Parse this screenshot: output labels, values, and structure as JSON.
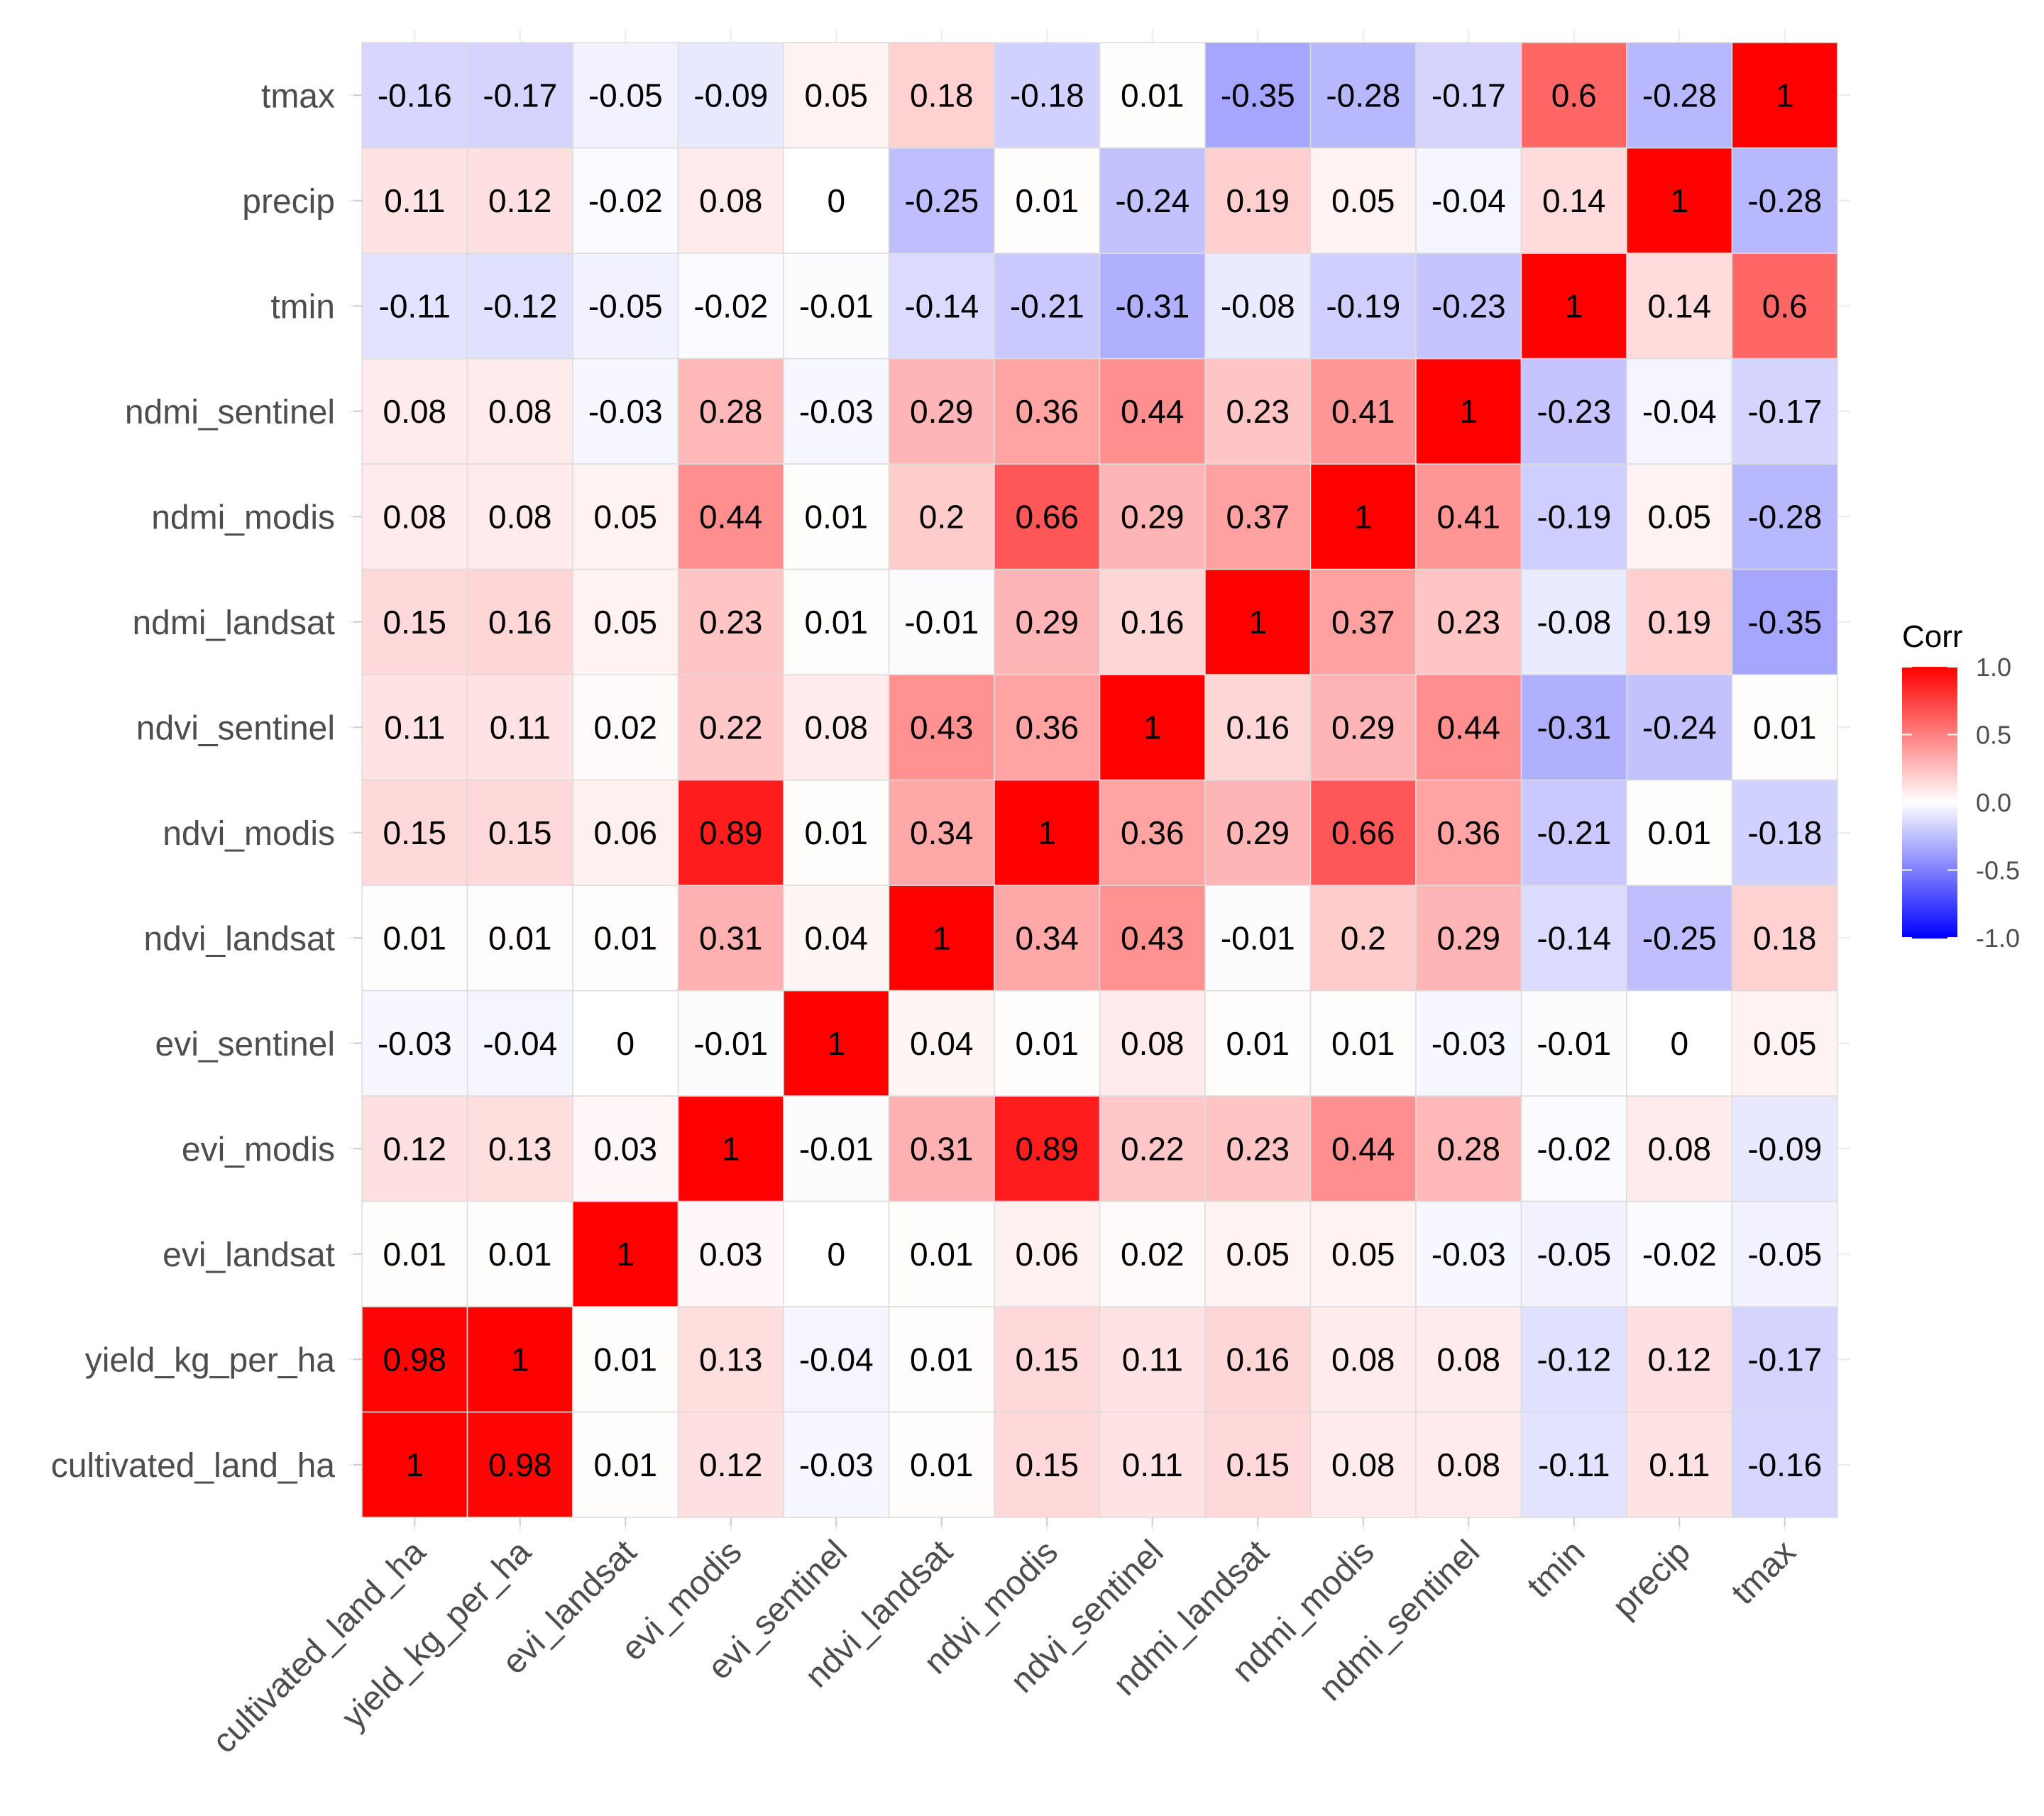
{
  "chart_data": {
    "type": "heatmap",
    "variables": [
      "cultivated_land_ha",
      "yield_kg_per_ha",
      "evi_landsat",
      "evi_modis",
      "evi_sentinel",
      "ndvi_landsat",
      "ndvi_modis",
      "ndvi_sentinel",
      "ndmi_landsat",
      "ndmi_modis",
      "ndmi_sentinel",
      "tmin",
      "precip",
      "tmax"
    ],
    "x_categories": [
      "cultivated_land_ha",
      "yield_kg_per_ha",
      "evi_landsat",
      "evi_modis",
      "evi_sentinel",
      "ndvi_landsat",
      "ndvi_modis",
      "ndvi_sentinel",
      "ndmi_landsat",
      "ndmi_modis",
      "ndmi_sentinel",
      "tmin",
      "precip",
      "tmax"
    ],
    "y_categories_bottom_to_top": [
      "cultivated_land_ha",
      "yield_kg_per_ha",
      "evi_landsat",
      "evi_modis",
      "evi_sentinel",
      "ndvi_landsat",
      "ndvi_modis",
      "ndvi_sentinel",
      "ndmi_landsat",
      "ndmi_modis",
      "ndmi_sentinel",
      "tmin",
      "precip",
      "tmax"
    ],
    "matrix": [
      [
        1,
        0.98,
        0.01,
        0.12,
        -0.03,
        0.01,
        0.15,
        0.11,
        0.15,
        0.08,
        0.08,
        -0.11,
        0.11,
        -0.16
      ],
      [
        0.98,
        1,
        0.01,
        0.13,
        -0.04,
        0.01,
        0.15,
        0.11,
        0.16,
        0.08,
        0.08,
        -0.12,
        0.12,
        -0.17
      ],
      [
        0.01,
        0.01,
        1,
        0.03,
        0,
        0.01,
        0.06,
        0.02,
        0.05,
        0.05,
        -0.03,
        -0.05,
        -0.02,
        -0.05
      ],
      [
        0.12,
        0.13,
        0.03,
        1,
        -0.01,
        0.31,
        0.89,
        0.22,
        0.23,
        0.44,
        0.28,
        -0.02,
        0.08,
        -0.09
      ],
      [
        -0.03,
        -0.04,
        0,
        -0.01,
        1,
        0.04,
        0.01,
        0.08,
        0.01,
        0.01,
        -0.03,
        -0.01,
        0,
        0.05
      ],
      [
        0.01,
        0.01,
        0.01,
        0.31,
        0.04,
        1,
        0.34,
        0.43,
        -0.01,
        0.2,
        0.29,
        -0.14,
        -0.25,
        0.18
      ],
      [
        0.15,
        0.15,
        0.06,
        0.89,
        0.01,
        0.34,
        1,
        0.36,
        0.29,
        0.66,
        0.36,
        -0.21,
        0.01,
        -0.18
      ],
      [
        0.11,
        0.11,
        0.02,
        0.22,
        0.08,
        0.43,
        0.36,
        1,
        0.16,
        0.29,
        0.44,
        -0.31,
        -0.24,
        0.01
      ],
      [
        0.15,
        0.16,
        0.05,
        0.23,
        0.01,
        -0.01,
        0.29,
        0.16,
        1,
        0.37,
        0.23,
        -0.08,
        0.19,
        -0.35
      ],
      [
        0.08,
        0.08,
        0.05,
        0.44,
        0.01,
        0.2,
        0.66,
        0.29,
        0.37,
        1,
        0.41,
        -0.19,
        0.05,
        -0.28
      ],
      [
        0.08,
        0.08,
        -0.03,
        0.28,
        -0.03,
        0.29,
        0.36,
        0.44,
        0.23,
        0.41,
        1,
        -0.23,
        -0.04,
        -0.17
      ],
      [
        -0.11,
        -0.12,
        -0.05,
        -0.02,
        -0.01,
        -0.14,
        -0.21,
        -0.31,
        -0.08,
        -0.19,
        -0.23,
        1,
        0.14,
        0.6
      ],
      [
        0.11,
        0.12,
        -0.02,
        0.08,
        0,
        -0.25,
        0.01,
        -0.24,
        0.19,
        0.05,
        -0.04,
        0.14,
        1,
        -0.28
      ],
      [
        -0.16,
        -0.17,
        -0.05,
        -0.09,
        0.05,
        0.18,
        -0.18,
        0.01,
        -0.35,
        -0.28,
        -0.17,
        0.6,
        -0.28,
        1
      ]
    ],
    "legend": {
      "title": "Corr",
      "ticks": [
        "1.0",
        "0.5",
        "0.0",
        "-0.5",
        "-1.0"
      ],
      "range": [
        -1,
        1
      ],
      "placement": "right"
    },
    "colors": {
      "low": "#0000ff",
      "mid": "#ffffff",
      "high": "#ff0000"
    },
    "grid": true,
    "title": "",
    "xlabel": "",
    "ylabel": ""
  }
}
